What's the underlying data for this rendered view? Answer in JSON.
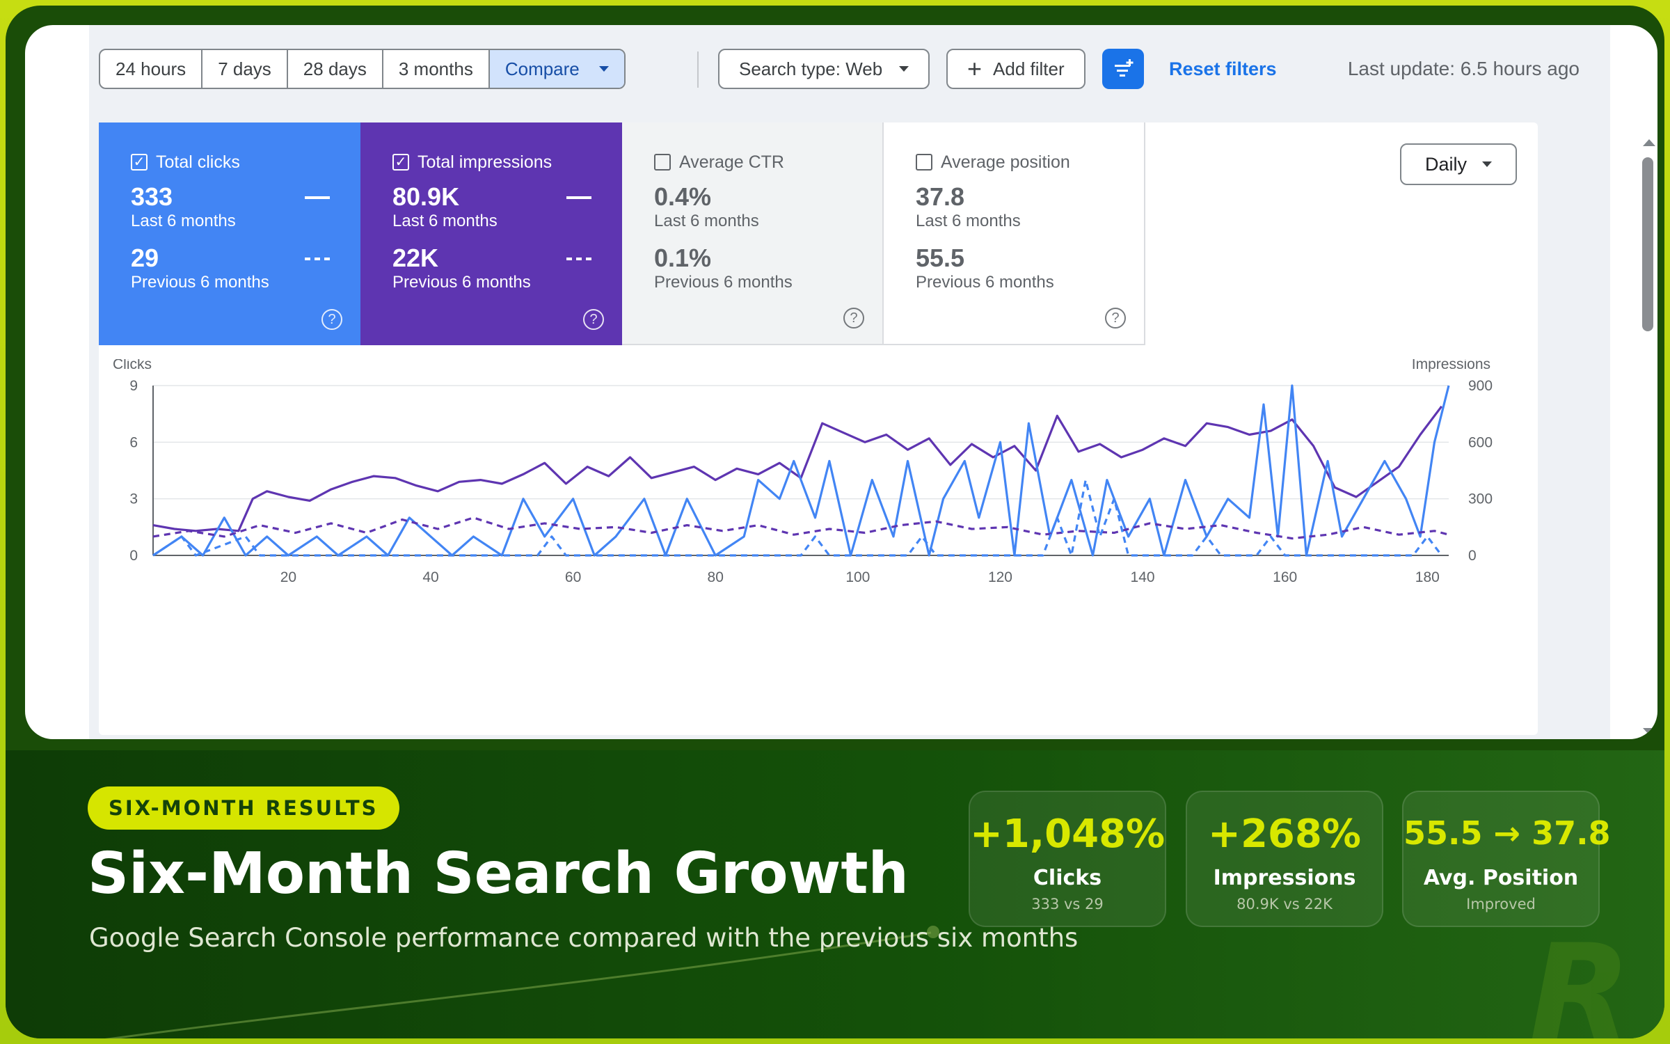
{
  "toolbar": {
    "ranges": [
      "24 hours",
      "7 days",
      "28 days",
      "3 months"
    ],
    "compare_label": "Compare",
    "search_type_label": "Search type: Web",
    "add_filter_label": "Add filter",
    "reset_label": "Reset filters",
    "last_update": "Last update: 6.5 hours ago"
  },
  "metrics": {
    "clicks": {
      "title": "Total clicks",
      "value": "333",
      "period": "Last 6 months",
      "prev_value": "29",
      "prev_period": "Previous 6 months"
    },
    "impressions": {
      "title": "Total impressions",
      "value": "80.9K",
      "period": "Last 6 months",
      "prev_value": "22K",
      "prev_period": "Previous 6 months"
    },
    "ctr": {
      "title": "Average CTR",
      "value": "0.4%",
      "period": "Last 6 months",
      "prev_value": "0.1%",
      "prev_period": "Previous 6 months"
    },
    "position": {
      "title": "Average position",
      "value": "37.8",
      "period": "Last 6 months",
      "prev_value": "55.5",
      "prev_period": "Previous 6 months"
    }
  },
  "granularity": "Daily",
  "colors": {
    "clicks": "#4285f4",
    "impressions": "#5e35b1",
    "accent": "#d6e500"
  },
  "chart_data": {
    "type": "line",
    "ylabel_left": "Clicks",
    "ylabel_right": "Impressions",
    "ylim_left": [
      0,
      9
    ],
    "ylim_right": [
      0,
      900
    ],
    "yticks_left": [
      "0",
      "3",
      "6",
      "9"
    ],
    "yticks_right": [
      "0",
      "300",
      "600",
      "900"
    ],
    "xlim": [
      1,
      183
    ],
    "xticks": [
      "20",
      "40",
      "60",
      "80",
      "100",
      "120",
      "140",
      "160",
      "180"
    ],
    "grid": true,
    "series": [
      {
        "id": "impressions_current",
        "axis": "right",
        "style": "solid",
        "values": [
          [
            1,
            160
          ],
          [
            4,
            140
          ],
          [
            7,
            130
          ],
          [
            10,
            140
          ],
          [
            13,
            130
          ],
          [
            15,
            300
          ],
          [
            17,
            340
          ],
          [
            20,
            310
          ],
          [
            23,
            290
          ],
          [
            26,
            350
          ],
          [
            29,
            390
          ],
          [
            32,
            420
          ],
          [
            35,
            410
          ],
          [
            38,
            370
          ],
          [
            41,
            340
          ],
          [
            44,
            390
          ],
          [
            47,
            400
          ],
          [
            50,
            380
          ],
          [
            53,
            430
          ],
          [
            56,
            490
          ],
          [
            59,
            380
          ],
          [
            62,
            470
          ],
          [
            65,
            420
          ],
          [
            68,
            520
          ],
          [
            71,
            410
          ],
          [
            74,
            440
          ],
          [
            77,
            470
          ],
          [
            80,
            400
          ],
          [
            83,
            460
          ],
          [
            86,
            430
          ],
          [
            89,
            490
          ],
          [
            92,
            410
          ],
          [
            95,
            700
          ],
          [
            98,
            650
          ],
          [
            101,
            600
          ],
          [
            104,
            640
          ],
          [
            107,
            560
          ],
          [
            110,
            620
          ],
          [
            113,
            480
          ],
          [
            116,
            590
          ],
          [
            119,
            520
          ],
          [
            122,
            580
          ],
          [
            125,
            450
          ],
          [
            128,
            740
          ],
          [
            131,
            550
          ],
          [
            134,
            590
          ],
          [
            137,
            520
          ],
          [
            140,
            560
          ],
          [
            143,
            620
          ],
          [
            146,
            580
          ],
          [
            149,
            700
          ],
          [
            152,
            680
          ],
          [
            155,
            640
          ],
          [
            158,
            660
          ],
          [
            161,
            720
          ],
          [
            164,
            580
          ],
          [
            167,
            360
          ],
          [
            170,
            310
          ],
          [
            173,
            390
          ],
          [
            176,
            470
          ],
          [
            179,
            640
          ],
          [
            182,
            790
          ]
        ]
      },
      {
        "id": "clicks_current",
        "axis": "left",
        "style": "solid",
        "values": [
          [
            1,
            0
          ],
          [
            5,
            1
          ],
          [
            8,
            0
          ],
          [
            11,
            2
          ],
          [
            14,
            0
          ],
          [
            17,
            1
          ],
          [
            20,
            0
          ],
          [
            24,
            1
          ],
          [
            27,
            0
          ],
          [
            31,
            1
          ],
          [
            34,
            0
          ],
          [
            37,
            2
          ],
          [
            40,
            1
          ],
          [
            43,
            0
          ],
          [
            46,
            1
          ],
          [
            50,
            0
          ],
          [
            53,
            3
          ],
          [
            56,
            1
          ],
          [
            60,
            3
          ],
          [
            63,
            0
          ],
          [
            66,
            1
          ],
          [
            70,
            3
          ],
          [
            73,
            0
          ],
          [
            76,
            3
          ],
          [
            80,
            0
          ],
          [
            84,
            1
          ],
          [
            86,
            4
          ],
          [
            89,
            3
          ],
          [
            91,
            5
          ],
          [
            94,
            2
          ],
          [
            96,
            5
          ],
          [
            99,
            0
          ],
          [
            102,
            4
          ],
          [
            105,
            1
          ],
          [
            107,
            5
          ],
          [
            110,
            0
          ],
          [
            112,
            3
          ],
          [
            115,
            5
          ],
          [
            117,
            2
          ],
          [
            120,
            6
          ],
          [
            122,
            0
          ],
          [
            124,
            7
          ],
          [
            127,
            1
          ],
          [
            130,
            4
          ],
          [
            133,
            0
          ],
          [
            135,
            4
          ],
          [
            138,
            1
          ],
          [
            141,
            3
          ],
          [
            143,
            0
          ],
          [
            146,
            4
          ],
          [
            149,
            1
          ],
          [
            152,
            3
          ],
          [
            155,
            2
          ],
          [
            157,
            8
          ],
          [
            159,
            1
          ],
          [
            161,
            9
          ],
          [
            163,
            0
          ],
          [
            166,
            5
          ],
          [
            168,
            1
          ],
          [
            171,
            3
          ],
          [
            174,
            5
          ],
          [
            177,
            3
          ],
          [
            179,
            1
          ],
          [
            181,
            6
          ],
          [
            183,
            9
          ]
        ]
      },
      {
        "id": "impressions_previous",
        "axis": "right",
        "style": "dashed",
        "values": [
          [
            1,
            100
          ],
          [
            6,
            130
          ],
          [
            11,
            100
          ],
          [
            16,
            160
          ],
          [
            21,
            120
          ],
          [
            26,
            170
          ],
          [
            31,
            120
          ],
          [
            36,
            190
          ],
          [
            41,
            140
          ],
          [
            46,
            200
          ],
          [
            51,
            140
          ],
          [
            56,
            170
          ],
          [
            61,
            140
          ],
          [
            66,
            150
          ],
          [
            71,
            120
          ],
          [
            76,
            160
          ],
          [
            81,
            130
          ],
          [
            86,
            160
          ],
          [
            91,
            110
          ],
          [
            96,
            140
          ],
          [
            101,
            120
          ],
          [
            106,
            160
          ],
          [
            111,
            180
          ],
          [
            116,
            140
          ],
          [
            121,
            150
          ],
          [
            126,
            110
          ],
          [
            131,
            130
          ],
          [
            136,
            120
          ],
          [
            141,
            170
          ],
          [
            146,
            140
          ],
          [
            151,
            160
          ],
          [
            156,
            120
          ],
          [
            161,
            90
          ],
          [
            166,
            110
          ],
          [
            171,
            150
          ],
          [
            176,
            110
          ],
          [
            181,
            130
          ],
          [
            183,
            110
          ]
        ]
      },
      {
        "id": "clicks_previous",
        "axis": "left",
        "style": "dashed",
        "values": [
          [
            1,
            0
          ],
          [
            5,
            1
          ],
          [
            7,
            0
          ],
          [
            14,
            1
          ],
          [
            16,
            0
          ],
          [
            55,
            0
          ],
          [
            57,
            1
          ],
          [
            59,
            0
          ],
          [
            92,
            0
          ],
          [
            94,
            1
          ],
          [
            96,
            0
          ],
          [
            107,
            0
          ],
          [
            109,
            1
          ],
          [
            111,
            0
          ],
          [
            126,
            0
          ],
          [
            128,
            2
          ],
          [
            130,
            0
          ],
          [
            132,
            4
          ],
          [
            134,
            1
          ],
          [
            136,
            3
          ],
          [
            138,
            0
          ],
          [
            147,
            0
          ],
          [
            149,
            1
          ],
          [
            151,
            0
          ],
          [
            156,
            0
          ],
          [
            158,
            1
          ],
          [
            160,
            0
          ],
          [
            178,
            0
          ],
          [
            180,
            1
          ],
          [
            182,
            0
          ]
        ]
      }
    ]
  },
  "banner": {
    "badge": "SIX-MONTH RESULTS",
    "title": "Six-Month Search Growth",
    "subtitle": "Google Search Console performance compared with the previous six months",
    "stats": [
      {
        "value": "+1,048%",
        "label": "Clicks",
        "sub": "333 vs 29"
      },
      {
        "value": "+268%",
        "label": "Impressions",
        "sub": "80.9K vs 22K"
      },
      {
        "value": "55.5 → 37.8",
        "label": "Avg. Position",
        "sub": "Improved"
      }
    ],
    "logo_letter": "R"
  }
}
